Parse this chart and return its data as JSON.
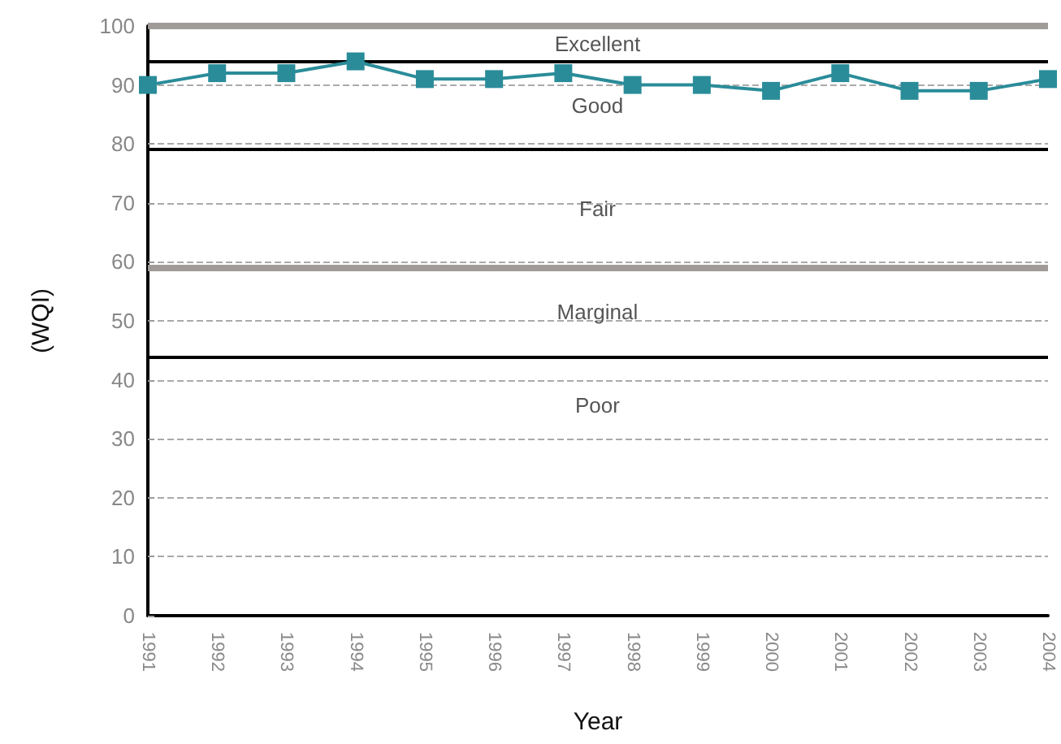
{
  "chart_data": {
    "type": "line",
    "xlabel": "Year",
    "ylabel": "(WQI)",
    "categories": [
      "1991",
      "1992",
      "1993",
      "1994",
      "1995",
      "1996",
      "1997",
      "1998",
      "1999",
      "2000",
      "2001",
      "2002",
      "2003",
      "2004"
    ],
    "series": [
      {
        "color": "#2a8c99",
        "values": [
          90,
          92,
          92,
          94,
          91,
          91,
          92,
          90,
          90,
          89,
          92,
          89,
          89,
          91
        ]
      }
    ],
    "ylim": [
      0,
      100
    ],
    "yticks": [
      0,
      10,
      20,
      30,
      40,
      50,
      60,
      70,
      80,
      90,
      100
    ],
    "grid": "y",
    "marker": "square",
    "line_style": "solid",
    "ref_lines": [
      {
        "axis": "y",
        "value": 100,
        "color": "#a09a98"
      },
      {
        "axis": "y",
        "value": 94,
        "color": "#000000"
      },
      {
        "axis": "y",
        "value": 79,
        "color": "#000000"
      },
      {
        "axis": "y",
        "value": 59,
        "color": "#a09a98"
      },
      {
        "axis": "y",
        "value": 44,
        "color": "#000000"
      }
    ],
    "annotations": [
      "Excellent",
      "Good",
      "Fair",
      "Marginal",
      "Poor"
    ]
  }
}
